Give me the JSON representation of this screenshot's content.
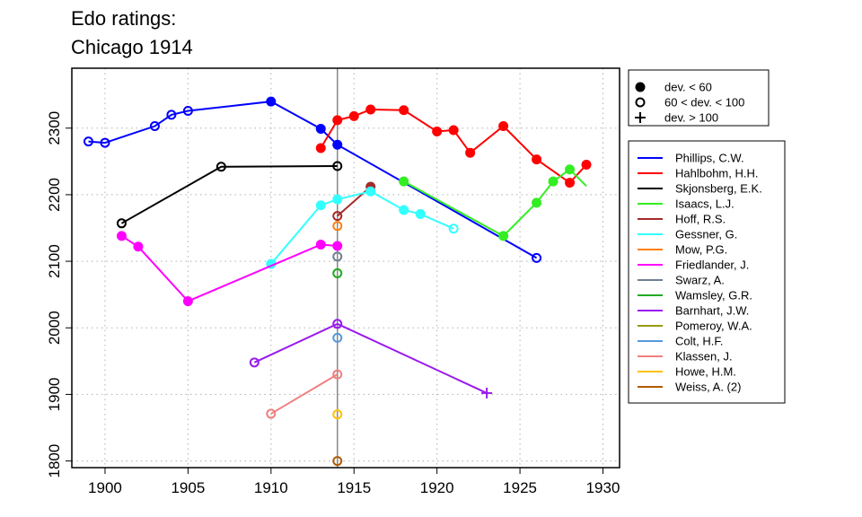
{
  "chart_data": {
    "type": "line",
    "title": [
      "Edo ratings:",
      "Chicago 1914"
    ],
    "xlabel": "",
    "ylabel": "",
    "xlim": [
      1898,
      1931
    ],
    "ylim": [
      1790,
      2390
    ],
    "x_ticks": [
      1900,
      1905,
      1910,
      1915,
      1920,
      1925,
      1930
    ],
    "y_ticks": [
      1800,
      1900,
      2000,
      2100,
      2200,
      2300
    ],
    "grid": true,
    "reference_line_x": 1914,
    "marker_legend": [
      {
        "label": "dev. < 60",
        "marker": "filled"
      },
      {
        "label": "60 < dev. < 100",
        "marker": "open"
      },
      {
        "label": "dev. > 100",
        "marker": "plus"
      }
    ],
    "series": [
      {
        "name": "Phillips, C.W.",
        "color": "#0000ff",
        "points": [
          {
            "x": 1899,
            "y": 2280,
            "m": "o"
          },
          {
            "x": 1900,
            "y": 2278,
            "m": "o"
          },
          {
            "x": 1903,
            "y": 2303,
            "m": "o"
          },
          {
            "x": 1904,
            "y": 2320,
            "m": "o"
          },
          {
            "x": 1905,
            "y": 2326,
            "m": "o"
          },
          {
            "x": 1910,
            "y": 2340,
            "m": "f"
          },
          {
            "x": 1913,
            "y": 2299,
            "m": "f"
          },
          {
            "x": 1914,
            "y": 2275,
            "m": "f"
          },
          {
            "x": 1926,
            "y": 2105,
            "m": "o"
          }
        ]
      },
      {
        "name": "Hahlbohm, H.H.",
        "color": "#ff0000",
        "points": [
          {
            "x": 1913,
            "y": 2270,
            "m": "f"
          },
          {
            "x": 1914,
            "y": 2312,
            "m": "f"
          },
          {
            "x": 1915,
            "y": 2318,
            "m": "f"
          },
          {
            "x": 1916,
            "y": 2328,
            "m": "f"
          },
          {
            "x": 1918,
            "y": 2327,
            "m": "f"
          },
          {
            "x": 1920,
            "y": 2295,
            "m": "f"
          },
          {
            "x": 1921,
            "y": 2297,
            "m": "f"
          },
          {
            "x": 1922,
            "y": 2263,
            "m": "f"
          },
          {
            "x": 1924,
            "y": 2303,
            "m": "f"
          },
          {
            "x": 1926,
            "y": 2253,
            "m": "f"
          },
          {
            "x": 1928,
            "y": 2218,
            "m": "f"
          },
          {
            "x": 1929,
            "y": 2245,
            "m": "f"
          }
        ]
      },
      {
        "name": "Skjonsberg, E.K.",
        "color": "#000000",
        "points": [
          {
            "x": 1901,
            "y": 2157,
            "m": "o"
          },
          {
            "x": 1907,
            "y": 2242,
            "m": "o"
          },
          {
            "x": 1914,
            "y": 2243,
            "m": "o"
          }
        ]
      },
      {
        "name": "Isaacs, L.J.",
        "color": "#33ee22",
        "points": [
          {
            "x": 1918,
            "y": 2220,
            "m": "f"
          },
          {
            "x": 1924,
            "y": 2138,
            "m": "f"
          },
          {
            "x": 1926,
            "y": 2188,
            "m": "f"
          },
          {
            "x": 1927,
            "y": 2220,
            "m": "f"
          },
          {
            "x": 1928,
            "y": 2238,
            "m": "f"
          },
          {
            "x": 1929,
            "y": 2213,
            "m": "n"
          }
        ]
      },
      {
        "name": "Hoff, R.S.",
        "color": "#a52a2a",
        "points": [
          {
            "x": 1914,
            "y": 2168,
            "m": "o"
          },
          {
            "x": 1916,
            "y": 2212,
            "m": "f"
          }
        ]
      },
      {
        "name": "Gessner, G.",
        "color": "#33ffff",
        "points": [
          {
            "x": 1910,
            "y": 2096,
            "m": "f"
          },
          {
            "x": 1913,
            "y": 2184,
            "m": "f"
          },
          {
            "x": 1914,
            "y": 2193,
            "m": "f"
          },
          {
            "x": 1916,
            "y": 2205,
            "m": "f"
          },
          {
            "x": 1918,
            "y": 2177,
            "m": "f"
          },
          {
            "x": 1919,
            "y": 2171,
            "m": "f"
          },
          {
            "x": 1921,
            "y": 2149,
            "m": "o"
          }
        ]
      },
      {
        "name": "Mow, P.G.",
        "color": "#ff7f0e",
        "points": [
          {
            "x": 1914,
            "y": 2153,
            "m": "o"
          }
        ]
      },
      {
        "name": "Friedlander, J.",
        "color": "#ff00ff",
        "points": [
          {
            "x": 1901,
            "y": 2138,
            "m": "f"
          },
          {
            "x": 1902,
            "y": 2122,
            "m": "f"
          },
          {
            "x": 1905,
            "y": 2040,
            "m": "f"
          },
          {
            "x": 1913,
            "y": 2125,
            "m": "f"
          },
          {
            "x": 1914,
            "y": 2123,
            "m": "f"
          }
        ]
      },
      {
        "name": "Swarz, A.",
        "color": "#708090",
        "points": [
          {
            "x": 1914,
            "y": 2107,
            "m": "o"
          }
        ]
      },
      {
        "name": "Wamsley, G.R.",
        "color": "#22aa22",
        "points": [
          {
            "x": 1914,
            "y": 2082,
            "m": "o"
          }
        ]
      },
      {
        "name": "Barnhart, J.W.",
        "color": "#9a1aee",
        "points": [
          {
            "x": 1909,
            "y": 1948,
            "m": "o"
          },
          {
            "x": 1914,
            "y": 2006,
            "m": "o"
          },
          {
            "x": 1923,
            "y": 1902,
            "m": "p"
          }
        ]
      },
      {
        "name": "Pomeroy, W.A.",
        "color": "#999910",
        "points": []
      },
      {
        "name": "Colt, H.F.",
        "color": "#5599dd",
        "points": [
          {
            "x": 1914,
            "y": 1985,
            "m": "o"
          }
        ]
      },
      {
        "name": "Klassen, J.",
        "color": "#f08080",
        "points": [
          {
            "x": 1910,
            "y": 1871,
            "m": "o"
          },
          {
            "x": 1914,
            "y": 1930,
            "m": "o"
          }
        ]
      },
      {
        "name": "Howe, H.M.",
        "color": "#ffc000",
        "points": [
          {
            "x": 1914,
            "y": 1870,
            "m": "o"
          }
        ]
      },
      {
        "name": "Weiss, A. (2)",
        "color": "#b05a00",
        "points": [
          {
            "x": 1914,
            "y": 1800,
            "m": "o"
          }
        ]
      }
    ]
  }
}
